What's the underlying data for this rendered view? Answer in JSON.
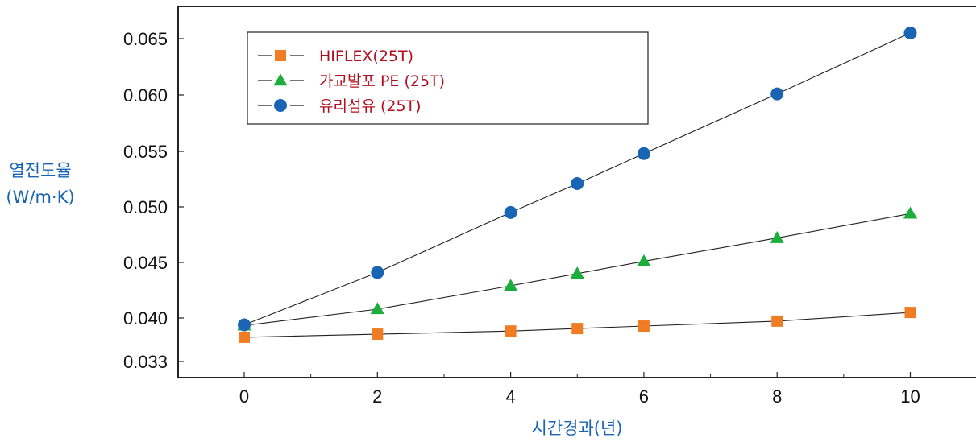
{
  "chart_data": {
    "type": "line",
    "xlabel": "시간경과(년)",
    "ylabel_line1": "열전도율",
    "ylabel_line2": "(W/m·K)",
    "x_ticks": [
      "0",
      "2",
      "4",
      "6",
      "8",
      "10"
    ],
    "y_ticks": [
      "0.033",
      "0.040",
      "0.045",
      "0.050",
      "0.055",
      "0.060",
      "0.065"
    ],
    "legend_position": "top-left",
    "series": [
      {
        "name": "HIFLEX(25T)",
        "marker": "square",
        "color": "#f07c23",
        "x": [
          0,
          2,
          4,
          5,
          6,
          8,
          10
        ],
        "y": [
          0.0369,
          0.0374,
          0.0379,
          0.0383,
          0.0387,
          0.0395,
          0.0405
        ]
      },
      {
        "name": "가교발포 PE (25T)",
        "marker": "triangle",
        "color": "#1cad3d",
        "x": [
          0,
          2,
          4,
          5,
          6,
          8,
          10
        ],
        "y": [
          0.0388,
          0.0408,
          0.0429,
          0.044,
          0.0451,
          0.0472,
          0.0494
        ]
      },
      {
        "name": "유리섬유 (25T)",
        "marker": "circle",
        "color": "#1a64b4",
        "x": [
          0,
          2,
          4,
          6,
          5,
          8,
          10
        ],
        "y": [
          0.0389,
          0.0441,
          0.0495,
          0.0548,
          0.0521,
          0.0601,
          0.0655
        ]
      }
    ]
  }
}
